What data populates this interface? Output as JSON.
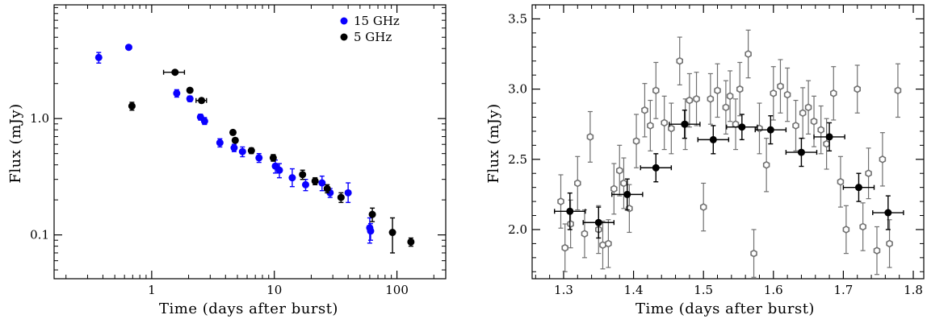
{
  "chart_data": [
    {
      "type": "scatter",
      "xlabel": "Time (days after burst)",
      "ylabel": "Flux (mJy)",
      "xscale": "log",
      "yscale": "log",
      "xlim": [
        0.16,
        250
      ],
      "ylim": [
        0.042,
        9.5
      ],
      "x_ticks": [
        1,
        10,
        100
      ],
      "x_tick_labels": [
        "1",
        "10",
        "100"
      ],
      "y_ticks": [
        0.1,
        1.0
      ],
      "y_tick_labels": [
        "0.1",
        "1.0"
      ],
      "legend_position": "top-right",
      "grid": false,
      "series": [
        {
          "name": "15 GHz",
          "color": "#0a00ff",
          "points": [
            {
              "x": 0.37,
              "y": 3.35,
              "ylo": 3.0,
              "yhi": 3.7
            },
            {
              "x": 0.65,
              "y": 4.1,
              "ylo": 3.95,
              "yhi": 4.25
            },
            {
              "x": 1.6,
              "y": 1.65,
              "ylo": 1.53,
              "yhi": 1.77
            },
            {
              "x": 2.05,
              "y": 1.48,
              "ylo": 1.4,
              "yhi": 1.56
            },
            {
              "x": 2.5,
              "y": 1.03,
              "ylo": 0.97,
              "yhi": 1.09
            },
            {
              "x": 2.7,
              "y": 0.95,
              "ylo": 0.89,
              "yhi": 1.02
            },
            {
              "x": 3.6,
              "y": 0.62,
              "ylo": 0.57,
              "yhi": 0.67
            },
            {
              "x": 4.7,
              "y": 0.56,
              "ylo": 0.52,
              "yhi": 0.6
            },
            {
              "x": 5.5,
              "y": 0.52,
              "ylo": 0.47,
              "yhi": 0.57
            },
            {
              "x": 7.5,
              "y": 0.46,
              "ylo": 0.42,
              "yhi": 0.5
            },
            {
              "x": 10.2,
              "y": 0.39,
              "ylo": 0.34,
              "yhi": 0.44
            },
            {
              "x": 11.0,
              "y": 0.36,
              "ylo": 0.31,
              "yhi": 0.41
            },
            {
              "x": 14.0,
              "y": 0.31,
              "ylo": 0.26,
              "yhi": 0.37
            },
            {
              "x": 18.0,
              "y": 0.27,
              "ylo": 0.24,
              "yhi": 0.3
            },
            {
              "x": 24.5,
              "y": 0.28,
              "ylo": 0.24,
              "yhi": 0.32
            },
            {
              "x": 28.5,
              "y": 0.23,
              "ylo": 0.21,
              "yhi": 0.25
            },
            {
              "x": 40.0,
              "y": 0.23,
              "ylo": 0.19,
              "yhi": 0.28
            },
            {
              "x": 60.0,
              "y": 0.115,
              "ylo": 0.085,
              "yhi": 0.14
            },
            {
              "x": 61.0,
              "y": 0.108,
              "ylo": 0.09,
              "yhi": 0.125
            }
          ]
        },
        {
          "name": "5 GHz",
          "color": "#000000",
          "points": [
            {
              "x": 0.69,
              "y": 1.28,
              "ylo": 1.18,
              "yhi": 1.38
            },
            {
              "x": 1.55,
              "y": 2.5,
              "ylo": 2.4,
              "yhi": 2.6,
              "xlo": 1.25,
              "xhi": 1.85
            },
            {
              "x": 2.05,
              "y": 1.75,
              "ylo": 1.68,
              "yhi": 1.82
            },
            {
              "x": 2.55,
              "y": 1.43,
              "ylo": 1.37,
              "yhi": 1.49,
              "xlo": 2.3,
              "xhi": 2.8
            },
            {
              "x": 4.6,
              "y": 0.76,
              "ylo": 0.73,
              "yhi": 0.79
            },
            {
              "x": 4.8,
              "y": 0.65,
              "ylo": 0.62,
              "yhi": 0.68
            },
            {
              "x": 6.5,
              "y": 0.53,
              "ylo": 0.5,
              "yhi": 0.56
            },
            {
              "x": 9.8,
              "y": 0.46,
              "ylo": 0.43,
              "yhi": 0.49
            },
            {
              "x": 17.0,
              "y": 0.33,
              "ylo": 0.3,
              "yhi": 0.36
            },
            {
              "x": 21.5,
              "y": 0.29,
              "ylo": 0.27,
              "yhi": 0.31
            },
            {
              "x": 27.0,
              "y": 0.25,
              "ylo": 0.23,
              "yhi": 0.27
            },
            {
              "x": 35.0,
              "y": 0.21,
              "ylo": 0.19,
              "yhi": 0.23
            },
            {
              "x": 63.0,
              "y": 0.15,
              "ylo": 0.13,
              "yhi": 0.17
            },
            {
              "x": 92.0,
              "y": 0.105,
              "ylo": 0.07,
              "yhi": 0.14
            },
            {
              "x": 130.0,
              "y": 0.087,
              "ylo": 0.08,
              "yhi": 0.094
            }
          ]
        }
      ]
    },
    {
      "type": "scatter",
      "xlabel": "Time (days after burst)",
      "ylabel": "Flux (mJy)",
      "xlim": [
        1.255,
        1.815
      ],
      "ylim": [
        1.65,
        3.6
      ],
      "x_ticks": [
        1.3,
        1.4,
        1.5,
        1.6,
        1.7,
        1.8
      ],
      "x_tick_labels": [
        "1.3",
        "1.4",
        "1.5",
        "1.6",
        "1.7",
        "1.8"
      ],
      "y_ticks": [
        2.0,
        2.5,
        3.0,
        3.5
      ],
      "y_tick_labels": [
        "2.0",
        "2.5",
        "3.0",
        "3.5"
      ],
      "grid": false,
      "series": [
        {
          "color": "#707070",
          "marker": "open-hexagon",
          "points": [
            {
              "x": 1.296,
              "y": 2.2,
              "err": 0.19
            },
            {
              "x": 1.302,
              "y": 1.87,
              "err": 0.17
            },
            {
              "x": 1.31,
              "y": 2.04,
              "err": 0.17
            },
            {
              "x": 1.32,
              "y": 2.33,
              "err": 0.19
            },
            {
              "x": 1.33,
              "y": 1.97,
              "err": 0.17
            },
            {
              "x": 1.338,
              "y": 2.66,
              "err": 0.18
            },
            {
              "x": 1.35,
              "y": 2.0,
              "err": 0.17
            },
            {
              "x": 1.356,
              "y": 1.89,
              "err": 0.17
            },
            {
              "x": 1.364,
              "y": 1.9,
              "err": 0.17
            },
            {
              "x": 1.372,
              "y": 2.29,
              "err": 0.18
            },
            {
              "x": 1.38,
              "y": 2.42,
              "err": 0.18
            },
            {
              "x": 1.386,
              "y": 2.33,
              "err": 0.18
            },
            {
              "x": 1.394,
              "y": 2.15,
              "err": 0.17
            },
            {
              "x": 1.404,
              "y": 2.63,
              "err": 0.19
            },
            {
              "x": 1.416,
              "y": 2.85,
              "err": 0.19
            },
            {
              "x": 1.424,
              "y": 2.74,
              "err": 0.18
            },
            {
              "x": 1.432,
              "y": 2.99,
              "err": 0.2
            },
            {
              "x": 1.444,
              "y": 2.76,
              "err": 0.19
            },
            {
              "x": 1.454,
              "y": 2.72,
              "err": 0.18
            },
            {
              "x": 1.466,
              "y": 3.2,
              "err": 0.17
            },
            {
              "x": 1.474,
              "y": 2.75,
              "err": 0.18
            },
            {
              "x": 1.48,
              "y": 2.92,
              "err": 0.19
            },
            {
              "x": 1.49,
              "y": 2.93,
              "err": 0.19
            },
            {
              "x": 1.5,
              "y": 2.16,
              "err": 0.17
            },
            {
              "x": 1.51,
              "y": 2.93,
              "err": 0.18
            },
            {
              "x": 1.52,
              "y": 2.99,
              "err": 0.19
            },
            {
              "x": 1.532,
              "y": 2.87,
              "err": 0.19
            },
            {
              "x": 1.538,
              "y": 2.95,
              "err": 0.18
            },
            {
              "x": 1.546,
              "y": 2.75,
              "err": 0.18
            },
            {
              "x": 1.552,
              "y": 3.0,
              "err": 0.19
            },
            {
              "x": 1.564,
              "y": 3.25,
              "err": 0.17
            },
            {
              "x": 1.572,
              "y": 1.83,
              "err": 0.17
            },
            {
              "x": 1.58,
              "y": 2.72,
              "err": 0.18
            },
            {
              "x": 1.59,
              "y": 2.46,
              "err": 0.19
            },
            {
              "x": 1.6,
              "y": 2.97,
              "err": 0.19
            },
            {
              "x": 1.61,
              "y": 3.02,
              "err": 0.19
            },
            {
              "x": 1.62,
              "y": 2.96,
              "err": 0.19
            },
            {
              "x": 1.632,
              "y": 2.74,
              "err": 0.18
            },
            {
              "x": 1.642,
              "y": 2.83,
              "err": 0.18
            },
            {
              "x": 1.65,
              "y": 2.87,
              "err": 0.19
            },
            {
              "x": 1.658,
              "y": 2.77,
              "err": 0.18
            },
            {
              "x": 1.668,
              "y": 2.71,
              "err": 0.17
            },
            {
              "x": 1.676,
              "y": 2.61,
              "err": 0.18
            },
            {
              "x": 1.686,
              "y": 2.97,
              "err": 0.19
            },
            {
              "x": 1.696,
              "y": 2.34,
              "err": 0.18
            },
            {
              "x": 1.704,
              "y": 2.0,
              "err": 0.17
            },
            {
              "x": 1.72,
              "y": 3.0,
              "err": 0.17
            },
            {
              "x": 1.728,
              "y": 2.02,
              "err": 0.17
            },
            {
              "x": 1.736,
              "y": 2.4,
              "err": 0.18
            },
            {
              "x": 1.748,
              "y": 1.85,
              "err": 0.17
            },
            {
              "x": 1.756,
              "y": 2.5,
              "err": 0.19
            },
            {
              "x": 1.766,
              "y": 1.9,
              "err": 0.17
            },
            {
              "x": 1.778,
              "y": 2.99,
              "err": 0.19
            }
          ]
        },
        {
          "color": "#000000",
          "marker": "filled-circle",
          "points": [
            {
              "x": 1.309,
              "y": 2.13,
              "xerr": 0.022,
              "err": 0.13
            },
            {
              "x": 1.35,
              "y": 2.05,
              "xerr": 0.022,
              "err": 0.11
            },
            {
              "x": 1.391,
              "y": 2.25,
              "xerr": 0.022,
              "err": 0.11
            },
            {
              "x": 1.432,
              "y": 2.44,
              "xerr": 0.022,
              "err": 0.1
            },
            {
              "x": 1.473,
              "y": 2.75,
              "xerr": 0.022,
              "err": 0.1
            },
            {
              "x": 1.514,
              "y": 2.64,
              "xerr": 0.022,
              "err": 0.1
            },
            {
              "x": 1.555,
              "y": 2.73,
              "xerr": 0.022,
              "err": 0.09
            },
            {
              "x": 1.596,
              "y": 2.71,
              "xerr": 0.022,
              "err": 0.1
            },
            {
              "x": 1.64,
              "y": 2.55,
              "xerr": 0.022,
              "err": 0.1
            },
            {
              "x": 1.68,
              "y": 2.66,
              "xerr": 0.022,
              "err": 0.1
            },
            {
              "x": 1.722,
              "y": 2.3,
              "xerr": 0.022,
              "err": 0.1
            },
            {
              "x": 1.764,
              "y": 2.12,
              "xerr": 0.022,
              "err": 0.12
            }
          ]
        }
      ]
    }
  ]
}
